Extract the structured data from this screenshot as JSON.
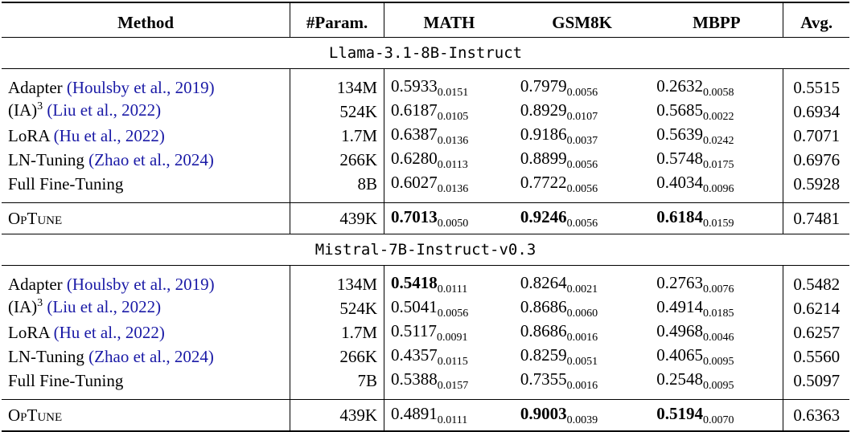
{
  "headers": {
    "method": "Method",
    "param": "#Param.",
    "math": "MATH",
    "gsm8k": "GSM8K",
    "mbpp": "MBPP",
    "avg": "Avg."
  },
  "groups": [
    {
      "title": "Llama-3.1-8B-Instruct",
      "rows": [
        {
          "method": "Adapter",
          "cite": "(Houlsby et al., 2019)",
          "param": "134M",
          "math": "0.5933",
          "math_std": "0.0151",
          "gsm": "0.7979",
          "gsm_std": "0.0056",
          "mbpp": "0.2632",
          "mbpp_std": "0.0058",
          "avg": "0.5515"
        },
        {
          "method": "(IA)",
          "method_sup": "3",
          "cite": "(Liu et al., 2022)",
          "param": "524K",
          "math": "0.6187",
          "math_std": "0.0105",
          "gsm": "0.8929",
          "gsm_std": "0.0107",
          "mbpp": "0.5685",
          "mbpp_std": "0.0022",
          "avg": "0.6934"
        },
        {
          "method": "LoRA",
          "cite": "(Hu et al., 2022)",
          "param": "1.7M",
          "math": "0.6387",
          "math_std": "0.0136",
          "gsm": "0.9186",
          "gsm_std": "0.0037",
          "mbpp": "0.5639",
          "mbpp_std": "0.0242",
          "avg": "0.7071"
        },
        {
          "method": "LN-Tuning",
          "cite": "(Zhao et al., 2024)",
          "param": "266K",
          "math": "0.6280",
          "math_std": "0.0113",
          "gsm": "0.8899",
          "gsm_std": "0.0056",
          "mbpp": "0.5748",
          "mbpp_std": "0.0175",
          "avg": "0.6976"
        },
        {
          "method": "Full Fine-Tuning",
          "cite": "",
          "param": "8B",
          "math": "0.6027",
          "math_std": "0.0136",
          "gsm": "0.7722",
          "gsm_std": "0.0056",
          "mbpp": "0.4034",
          "mbpp_std": "0.0096",
          "avg": "0.5928"
        }
      ],
      "ours": {
        "method": "OpTune",
        "param": "439K",
        "math": "0.7013",
        "math_std": "0.0050",
        "gsm": "0.9246",
        "gsm_std": "0.0056",
        "mbpp": "0.6184",
        "mbpp_std": "0.0159",
        "avg": "0.7481"
      }
    },
    {
      "title": "Mistral-7B-Instruct-v0.3",
      "rows": [
        {
          "method": "Adapter",
          "cite": "(Houlsby et al., 2019)",
          "param": "134M",
          "math": "0.5418",
          "math_std": "0.0111",
          "gsm": "0.8264",
          "gsm_std": "0.0021",
          "mbpp": "0.2763",
          "mbpp_std": "0.0076",
          "avg": "0.5482"
        },
        {
          "method": "(IA)",
          "method_sup": "3",
          "cite": "(Liu et al., 2022)",
          "param": "524K",
          "math": "0.5041",
          "math_std": "0.0056",
          "gsm": "0.8686",
          "gsm_std": "0.0060",
          "mbpp": "0.4914",
          "mbpp_std": "0.0185",
          "avg": "0.6214"
        },
        {
          "method": "LoRA",
          "cite": "(Hu et al., 2022)",
          "param": "1.7M",
          "math": "0.5117",
          "math_std": "0.0091",
          "gsm": "0.8686",
          "gsm_std": "0.0016",
          "mbpp": "0.4968",
          "mbpp_std": "0.0046",
          "avg": "0.6257"
        },
        {
          "method": "LN-Tuning",
          "cite": "(Zhao et al., 2024)",
          "param": "266K",
          "math": "0.4357",
          "math_std": "0.0115",
          "gsm": "0.8259",
          "gsm_std": "0.0051",
          "mbpp": "0.4065",
          "mbpp_std": "0.0095",
          "avg": "0.5560"
        },
        {
          "method": "Full Fine-Tuning",
          "cite": "",
          "param": "7B",
          "math": "0.5388",
          "math_std": "0.0157",
          "gsm": "0.7355",
          "gsm_std": "0.0016",
          "mbpp": "0.2548",
          "mbpp_std": "0.0095",
          "avg": "0.5097"
        }
      ],
      "ours": {
        "method": "OpTune",
        "param": "439K",
        "math": "0.4891",
        "math_std": "0.0111",
        "gsm": "0.9003",
        "gsm_std": "0.0039",
        "mbpp": "0.5194",
        "mbpp_std": "0.0070",
        "avg": "0.6363"
      }
    }
  ]
}
